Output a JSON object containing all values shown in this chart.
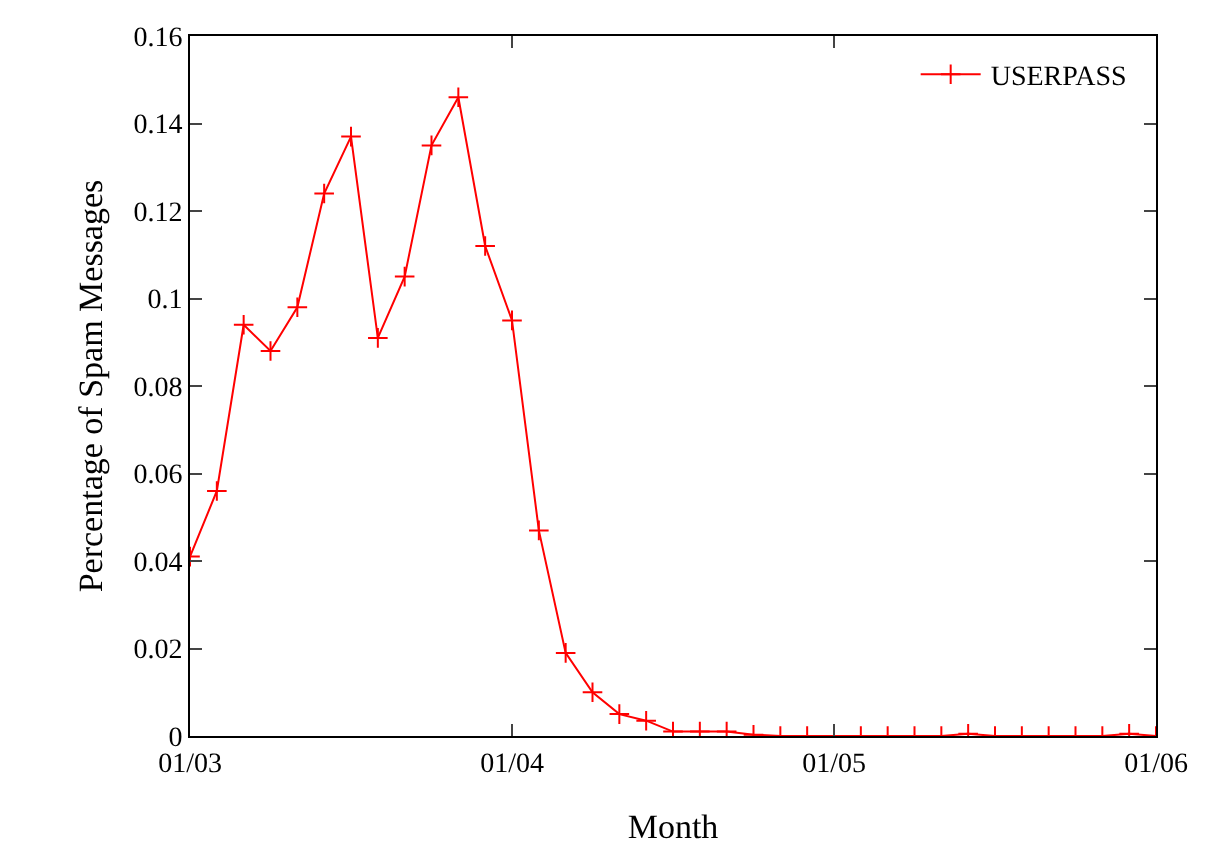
{
  "chart_data": {
    "type": "line",
    "xlabel": "Month",
    "ylabel": "Percentage of Spam Messages",
    "categories": [
      "01/03",
      null,
      null,
      null,
      null,
      null,
      null,
      null,
      null,
      null,
      null,
      null,
      "01/04",
      null,
      null,
      null,
      null,
      null,
      null,
      null,
      null,
      null,
      null,
      null,
      "01/05",
      null,
      null,
      null,
      null,
      null,
      null,
      null,
      null,
      null,
      null,
      null,
      "01/06"
    ],
    "series": [
      {
        "name": "USERPASS",
        "color": "#ff0000",
        "values": [
          0.041,
          0.056,
          0.094,
          0.088,
          0.098,
          0.124,
          0.137,
          0.091,
          0.105,
          0.135,
          0.146,
          0.112,
          0.095,
          0.047,
          0.019,
          0.01,
          0.005,
          0.0035,
          0.001,
          0.001,
          0.001,
          0.0003,
          0,
          0,
          0,
          0,
          0,
          0,
          0,
          0.0005,
          0,
          0,
          0,
          0,
          0,
          0.0005,
          0
        ]
      }
    ],
    "ylim": [
      0,
      0.16
    ],
    "yticks": [
      0,
      0.02,
      0.04,
      0.06,
      0.08,
      0.1,
      0.12,
      0.14,
      0.16
    ],
    "grid": false,
    "legend": "top right",
    "marker": "cross",
    "line_style": "solid"
  }
}
